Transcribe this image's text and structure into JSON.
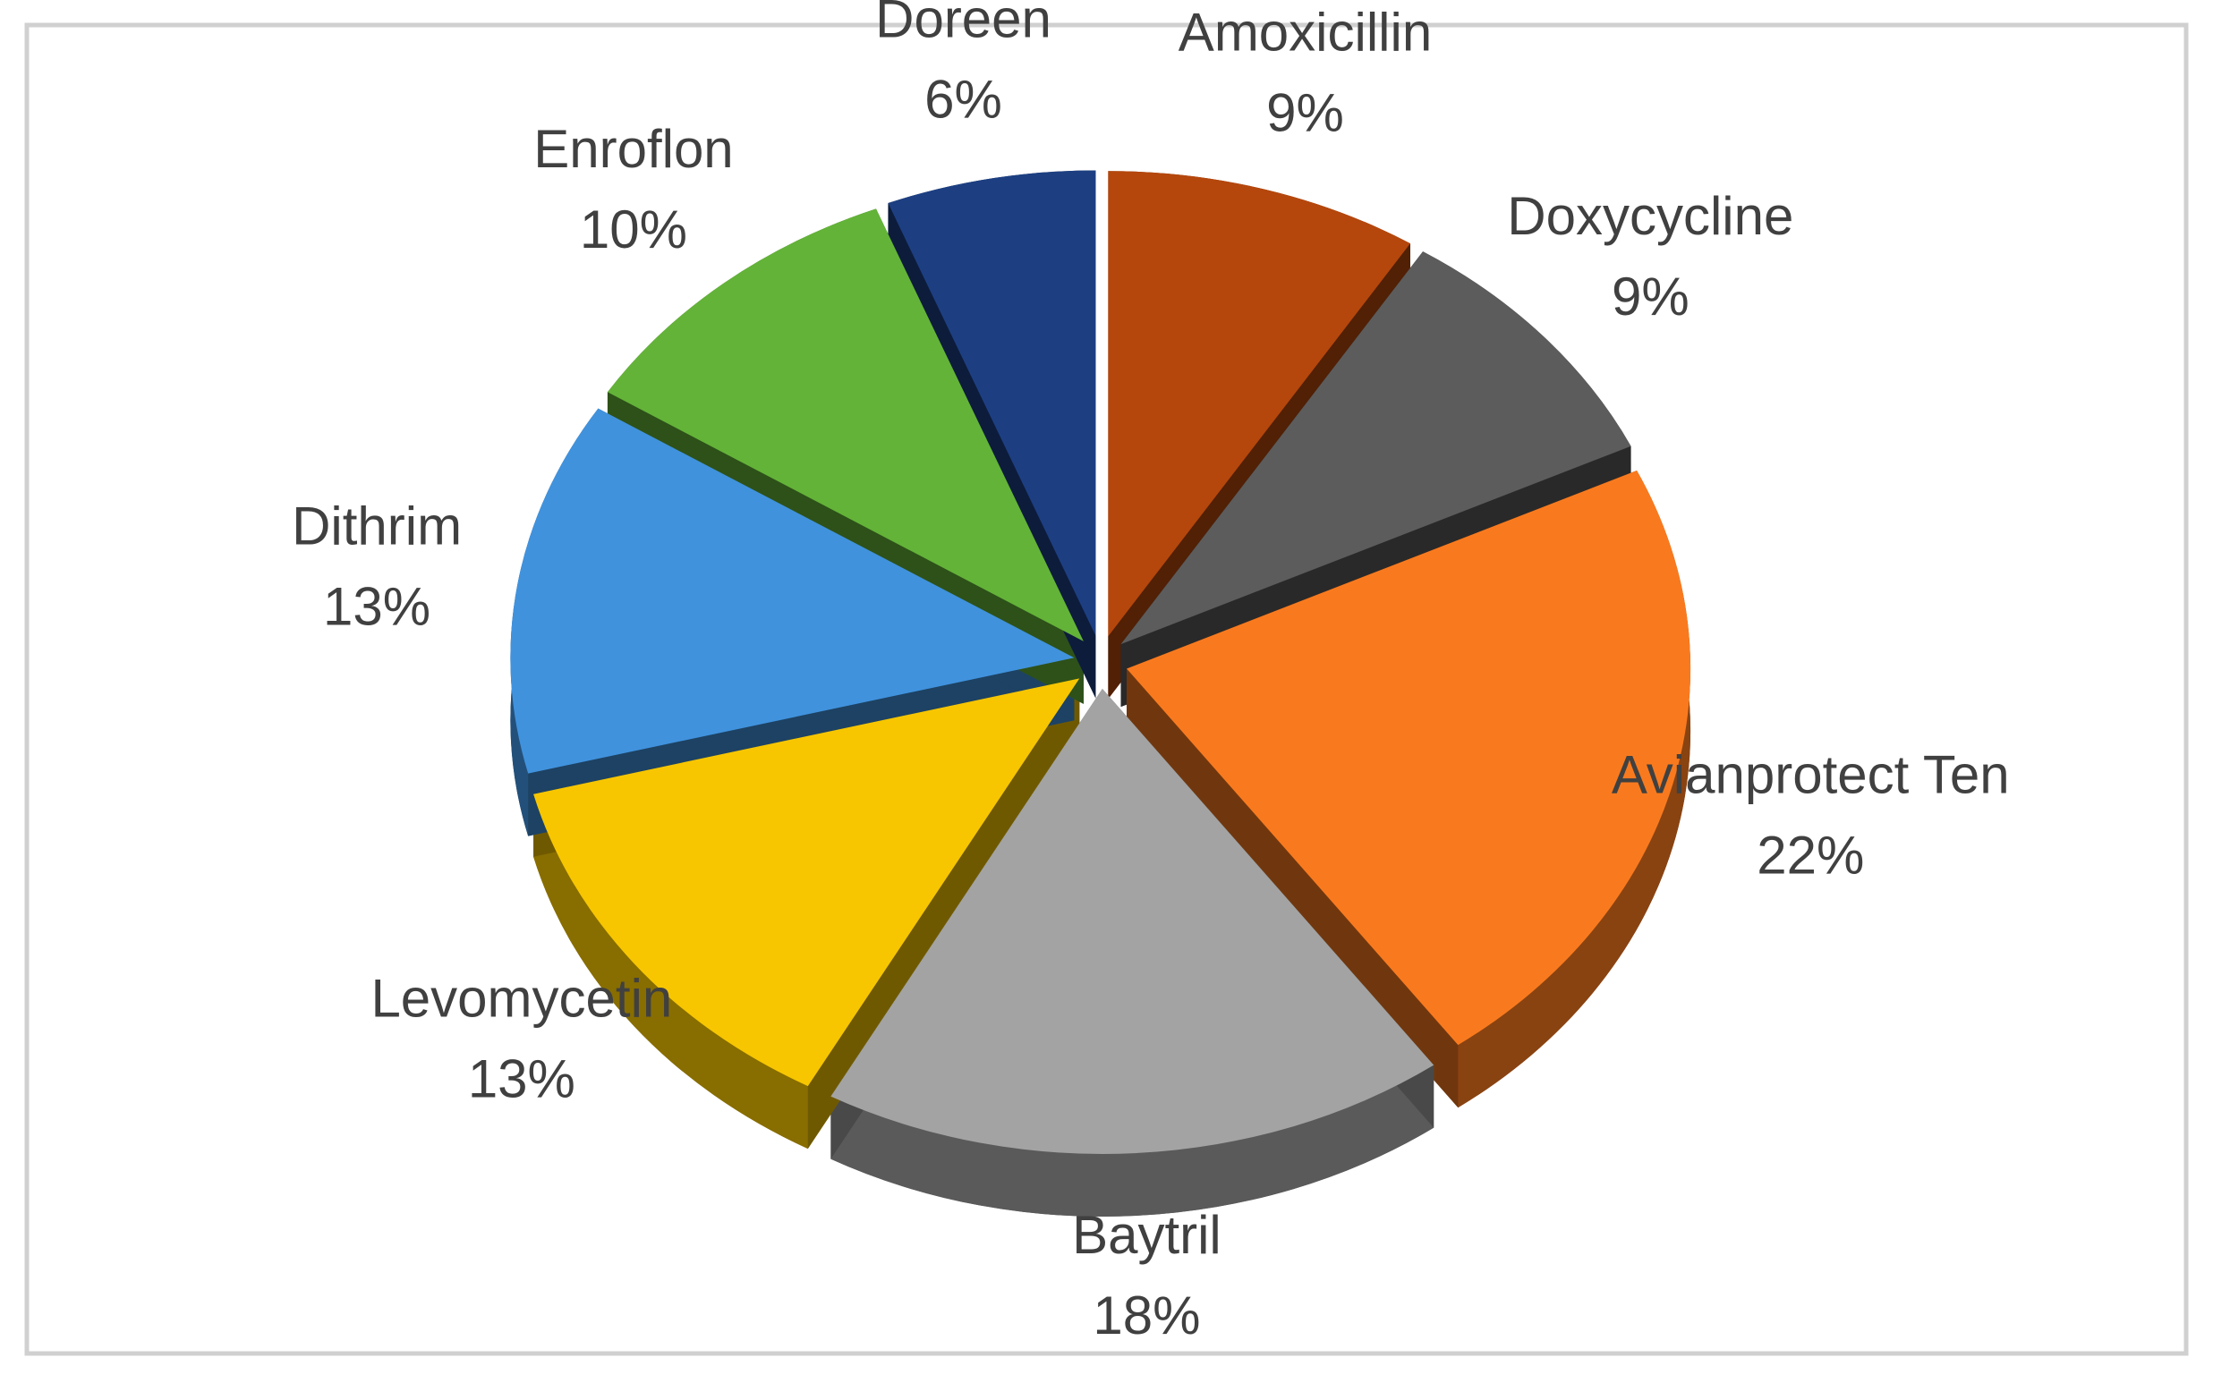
{
  "chart_data": {
    "type": "pie",
    "categories": [
      "Amoxicillin",
      "Doxycycline",
      "Avianprotect Ten",
      "Baytril",
      "Levomycetin",
      "Dithrim",
      "Enroflon",
      "Doreen"
    ],
    "values": [
      9,
      9,
      22,
      18,
      13,
      13,
      10,
      6
    ],
    "value_labels": [
      "9%",
      "9%",
      "22%",
      "18%",
      "13%",
      "13%",
      "10%",
      "6%"
    ],
    "colors": [
      "#b5470c",
      "#5c5c5c",
      "#f97a1e",
      "#a3a3a3",
      "#f7c600",
      "#4092dd",
      "#63b338",
      "#1d3f82"
    ]
  }
}
